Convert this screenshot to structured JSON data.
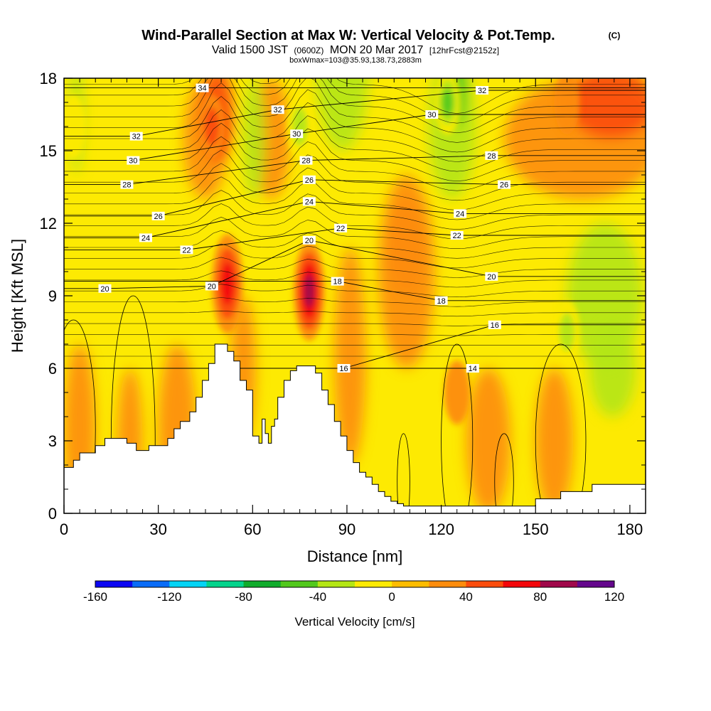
{
  "title": {
    "main": "Wind-Parallel Section at Max W: Vertical Velocity & Pot.Temp.",
    "unit_tag": "(C)",
    "sub_prefix": "Valid 1500 JST",
    "sub_utc": "(0600Z)",
    "sub_date": "MON 20 Mar 2017",
    "sub_fcst": "[12hrFcst@2152z]",
    "box": "boxWmax=103@35.93,138.73,2883m"
  },
  "chart_data": {
    "type": "heatmap",
    "xlabel": "Distance [nm]",
    "ylabel": "Height [Kft MSL]",
    "xlim": [
      0,
      185
    ],
    "ylim": [
      0,
      18
    ],
    "xticks": [
      0,
      30,
      60,
      90,
      120,
      150,
      180
    ],
    "yticks": [
      0,
      3,
      6,
      9,
      12,
      15,
      18
    ],
    "grid": false,
    "colorbar": {
      "title": "Vertical Velocity [cm/s]",
      "bounds": [
        -160,
        -140,
        -120,
        -100,
        -80,
        -60,
        -40,
        -20,
        0,
        20,
        40,
        60,
        80,
        100,
        120
      ],
      "tick_labels": [
        "-160",
        "-120",
        "-80",
        "-40",
        "0",
        "40",
        "80",
        "120"
      ],
      "colors": [
        "#0c06f2",
        "#0a6cf7",
        "#04d4f5",
        "#04d48c",
        "#10ac2c",
        "#52c81c",
        "#b4e614",
        "#fdea02",
        "#fdbc00",
        "#fd8c0c",
        "#fb4c0c",
        "#f3060a",
        "#a0084a",
        "#64068c"
      ]
    },
    "velocity_max_cells": [
      {
        "x": 52,
        "y": 9.5,
        "value": 70
      },
      {
        "x": 78,
        "y": 9.2,
        "value": 80
      },
      {
        "x": 47,
        "y": 16,
        "value": 45
      },
      {
        "x": 160,
        "y": 17,
        "value": 30
      },
      {
        "x": 125,
        "y": 5,
        "value": 30
      },
      {
        "x": 122,
        "y": 17,
        "value": -60
      },
      {
        "x": 160,
        "y": 7.5,
        "value": -40
      },
      {
        "x": 75,
        "y": 16,
        "value": -40
      },
      {
        "x": 3,
        "y": 16,
        "value": -30
      }
    ],
    "terrain_profile": {
      "x": [
        0,
        3,
        5,
        7,
        10,
        13,
        15,
        17,
        20,
        22,
        23,
        25,
        27,
        30,
        33,
        35,
        37,
        40,
        42,
        44,
        46,
        48,
        50,
        52,
        54,
        56,
        58,
        60,
        62,
        63,
        64,
        65,
        66,
        67,
        68,
        70,
        72,
        74,
        76,
        78,
        80,
        82,
        84,
        86,
        88,
        90,
        92,
        94,
        96,
        98,
        100,
        102,
        104,
        106,
        108,
        110,
        112,
        114,
        116,
        118,
        120,
        125,
        130,
        135,
        140,
        145,
        148,
        150,
        152,
        155,
        158,
        160,
        162,
        165,
        168,
        170,
        175,
        180,
        185
      ],
      "y": [
        1.9,
        2.2,
        2.5,
        2.5,
        2.8,
        3.1,
        3.1,
        3.1,
        2.9,
        2.9,
        2.6,
        2.6,
        2.8,
        2.8,
        3.1,
        3.5,
        3.8,
        4.2,
        4.8,
        5.5,
        6.2,
        7.0,
        7.0,
        6.7,
        6.3,
        5.5,
        5.1,
        3.2,
        2.9,
        3.9,
        3.3,
        2.9,
        3.6,
        3.9,
        4.8,
        5.5,
        5.9,
        6.1,
        6.1,
        6.1,
        5.8,
        5.1,
        4.5,
        3.8,
        3.2,
        2.6,
        2.1,
        1.7,
        1.5,
        1.2,
        0.9,
        0.7,
        0.5,
        0.4,
        0.3,
        0.3,
        0.3,
        0.3,
        0.3,
        0.3,
        0.3,
        0.3,
        0.3,
        0.3,
        0.3,
        0.3,
        0.3,
        0.6,
        0.6,
        0.6,
        0.9,
        0.9,
        0.9,
        0.9,
        1.2,
        1.2,
        1.2,
        1.2,
        1.2
      ]
    },
    "isentrope_labels": [
      {
        "value": "34",
        "x": 44,
        "y": 17.6
      },
      {
        "value": "32",
        "x": 23,
        "y": 15.6
      },
      {
        "value": "32",
        "x": 68,
        "y": 16.7
      },
      {
        "value": "32",
        "x": 133,
        "y": 17.5
      },
      {
        "value": "30",
        "x": 22,
        "y": 14.6
      },
      {
        "value": "30",
        "x": 74,
        "y": 15.7
      },
      {
        "value": "30",
        "x": 117,
        "y": 16.5
      },
      {
        "value": "28",
        "x": 20,
        "y": 13.6
      },
      {
        "value": "28",
        "x": 77,
        "y": 14.6
      },
      {
        "value": "28",
        "x": 136,
        "y": 14.8
      },
      {
        "value": "26",
        "x": 30,
        "y": 12.3
      },
      {
        "value": "26",
        "x": 78,
        "y": 13.8
      },
      {
        "value": "26",
        "x": 140,
        "y": 13.6
      },
      {
        "value": "24",
        "x": 26,
        "y": 11.4
      },
      {
        "value": "24",
        "x": 78,
        "y": 12.9
      },
      {
        "value": "24",
        "x": 126,
        "y": 12.4
      },
      {
        "value": "22",
        "x": 39,
        "y": 10.9
      },
      {
        "value": "22",
        "x": 88,
        "y": 11.8
      },
      {
        "value": "22",
        "x": 125,
        "y": 11.5
      },
      {
        "value": "20",
        "x": 13,
        "y": 9.3
      },
      {
        "value": "20",
        "x": 47,
        "y": 9.4
      },
      {
        "value": "20",
        "x": 78,
        "y": 11.3
      },
      {
        "value": "20",
        "x": 136,
        "y": 9.8
      },
      {
        "value": "18",
        "x": 87,
        "y": 9.6
      },
      {
        "value": "18",
        "x": 120,
        "y": 8.8
      },
      {
        "value": "16",
        "x": 89,
        "y": 6.0
      },
      {
        "value": "16",
        "x": 137,
        "y": 7.8
      },
      {
        "value": "14",
        "x": 130,
        "y": 6.0
      }
    ]
  }
}
